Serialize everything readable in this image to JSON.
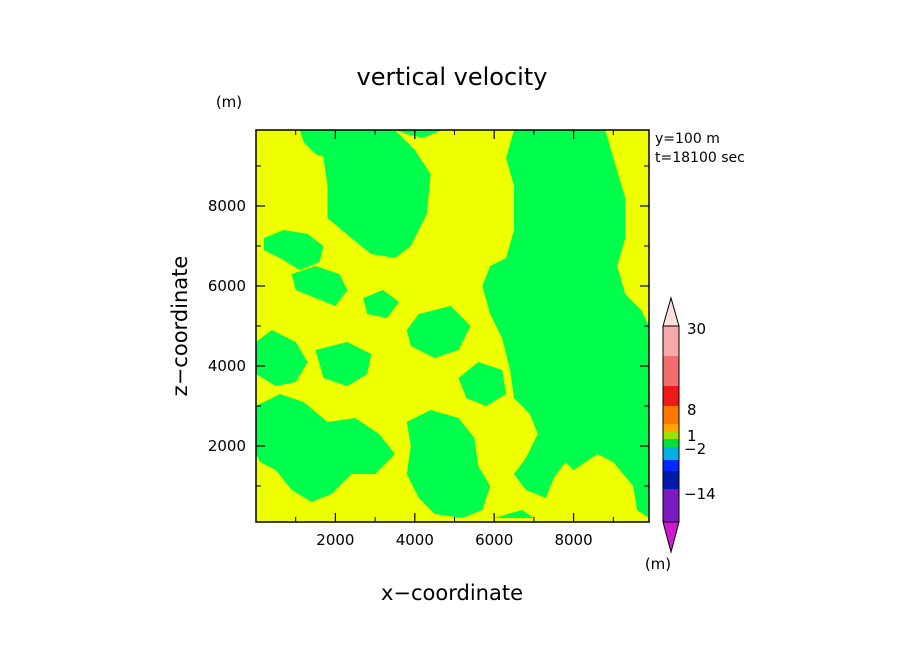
{
  "chart_data": {
    "type": "heatmap",
    "title": "vertical velocity",
    "xlabel": "x−coordinate",
    "ylabel": "z−coordinate",
    "x_unit": "(m)",
    "y_unit": "(m)",
    "annotation_y": "y=100 m",
    "annotation_t": "t=18100 sec",
    "xlim": [
      0,
      9900
    ],
    "ylim": [
      100,
      9900
    ],
    "x_ticks": [
      {
        "value": 2000,
        "label": "2000"
      },
      {
        "value": 4000,
        "label": "4000"
      },
      {
        "value": 6000,
        "label": "6000"
      },
      {
        "value": 8000,
        "label": "8000"
      }
    ],
    "y_ticks": [
      {
        "value": 2000,
        "label": "2000"
      },
      {
        "value": 4000,
        "label": "4000"
      },
      {
        "value": 6000,
        "label": "6000"
      },
      {
        "value": 8000,
        "label": "8000"
      }
    ],
    "background_color": "#eeff00",
    "region_color": "#00ff4c",
    "regions": [
      [
        [
          1100,
          9900
        ],
        [
          2300,
          9900
        ],
        [
          2100,
          9500
        ],
        [
          1800,
          9200
        ],
        [
          1500,
          9300
        ],
        [
          1200,
          9600
        ]
      ],
      [
        [
          1700,
          9900
        ],
        [
          4700,
          9900
        ],
        [
          4200,
          9700
        ],
        [
          3800,
          9800
        ],
        [
          3500,
          9900
        ],
        [
          4000,
          9400
        ],
        [
          4400,
          8800
        ],
        [
          4300,
          7800
        ],
        [
          3900,
          7000
        ],
        [
          3500,
          6700
        ],
        [
          2900,
          6800
        ],
        [
          2400,
          7200
        ],
        [
          1800,
          7700
        ],
        [
          1800,
          8500
        ],
        [
          1700,
          9200
        ]
      ],
      [
        [
          6500,
          9900
        ],
        [
          8800,
          9900
        ],
        [
          9000,
          9200
        ],
        [
          9300,
          8200
        ],
        [
          9300,
          7200
        ],
        [
          9100,
          6500
        ],
        [
          9300,
          5800
        ],
        [
          9700,
          5400
        ],
        [
          9900,
          5000
        ],
        [
          9900,
          200
        ],
        [
          9600,
          400
        ],
        [
          9500,
          1000
        ],
        [
          9000,
          1600
        ],
        [
          8600,
          1800
        ],
        [
          8300,
          1600
        ],
        [
          8000,
          1400
        ],
        [
          7800,
          1600
        ],
        [
          7500,
          1200
        ],
        [
          7300,
          700
        ],
        [
          6800,
          900
        ],
        [
          6500,
          1300
        ],
        [
          6800,
          1700
        ],
        [
          7100,
          2300
        ],
        [
          6900,
          2800
        ],
        [
          6500,
          3200
        ],
        [
          6400,
          3900
        ],
        [
          6200,
          4700
        ],
        [
          5900,
          5300
        ],
        [
          5700,
          6000
        ],
        [
          5900,
          6500
        ],
        [
          6300,
          6700
        ],
        [
          6500,
          7400
        ],
        [
          6500,
          8500
        ],
        [
          6300,
          9200
        ]
      ],
      [
        [
          200,
          7200
        ],
        [
          700,
          7400
        ],
        [
          1300,
          7300
        ],
        [
          1700,
          7000
        ],
        [
          1600,
          6600
        ],
        [
          1100,
          6400
        ],
        [
          600,
          6700
        ],
        [
          200,
          6900
        ]
      ],
      [
        [
          900,
          6300
        ],
        [
          1500,
          6500
        ],
        [
          2100,
          6300
        ],
        [
          2300,
          5900
        ],
        [
          2000,
          5500
        ],
        [
          1500,
          5700
        ],
        [
          1000,
          5900
        ]
      ],
      [
        [
          0,
          4600
        ],
        [
          400,
          4900
        ],
        [
          1000,
          4600
        ],
        [
          1300,
          4100
        ],
        [
          1000,
          3600
        ],
        [
          500,
          3500
        ],
        [
          0,
          3800
        ]
      ],
      [
        [
          1500,
          4400
        ],
        [
          2300,
          4600
        ],
        [
          2900,
          4300
        ],
        [
          2800,
          3800
        ],
        [
          2300,
          3500
        ],
        [
          1700,
          3700
        ]
      ],
      [
        [
          4100,
          5300
        ],
        [
          4900,
          5500
        ],
        [
          5400,
          5000
        ],
        [
          5100,
          4400
        ],
        [
          4500,
          4200
        ],
        [
          3900,
          4500
        ],
        [
          3800,
          4900
        ]
      ],
      [
        [
          0,
          3000
        ],
        [
          600,
          3300
        ],
        [
          1200,
          3100
        ],
        [
          1800,
          2600
        ],
        [
          2500,
          2700
        ],
        [
          3100,
          2300
        ],
        [
          3500,
          1800
        ],
        [
          3000,
          1300
        ],
        [
          2400,
          1300
        ],
        [
          1900,
          800
        ],
        [
          1400,
          600
        ],
        [
          900,
          900
        ],
        [
          500,
          1400
        ],
        [
          100,
          1600
        ],
        [
          0,
          1800
        ]
      ],
      [
        [
          3800,
          2600
        ],
        [
          4400,
          2900
        ],
        [
          5100,
          2700
        ],
        [
          5500,
          2200
        ],
        [
          5600,
          1500
        ],
        [
          5900,
          1000
        ],
        [
          5700,
          400
        ],
        [
          5200,
          200
        ],
        [
          4500,
          300
        ],
        [
          4100,
          700
        ],
        [
          3800,
          1300
        ],
        [
          3900,
          2000
        ]
      ],
      [
        [
          5100,
          3700
        ],
        [
          5600,
          4100
        ],
        [
          6200,
          3900
        ],
        [
          6300,
          3300
        ],
        [
          5800,
          3000
        ],
        [
          5300,
          3200
        ]
      ],
      [
        [
          6800,
          6900
        ],
        [
          7300,
          7000
        ],
        [
          7600,
          6500
        ],
        [
          7300,
          6100
        ],
        [
          6800,
          6300
        ]
      ],
      [
        [
          8200,
          2900
        ],
        [
          8600,
          3000
        ],
        [
          8900,
          2600
        ],
        [
          8600,
          2300
        ],
        [
          8200,
          2400
        ]
      ],
      [
        [
          6000,
          200
        ],
        [
          6700,
          400
        ],
        [
          7000,
          200
        ]
      ],
      [
        [
          2700,
          5700
        ],
        [
          3200,
          5900
        ],
        [
          3600,
          5600
        ],
        [
          3300,
          5200
        ],
        [
          2800,
          5300
        ]
      ]
    ],
    "colorbar": {
      "unit": "(m)",
      "label_values": [
        "30",
        "8",
        "1",
        "−2",
        "−14"
      ],
      "bands": [
        {
          "color": "#f4aaa8"
        },
        {
          "color": "#f26b6e"
        },
        {
          "color": "#ee1a1a"
        },
        {
          "color": "#ff7700"
        },
        {
          "color": "#ffa500"
        },
        {
          "color": "#a0e000"
        },
        {
          "color": "#00e040"
        },
        {
          "color": "#00b0e0"
        },
        {
          "color": "#0028ff"
        },
        {
          "color": "#001aa8"
        },
        {
          "color": "#7a1ac0"
        },
        {
          "color": "#c01ad0"
        }
      ],
      "top_arrow_color": "#fbe0dc",
      "bottom_arrow_color": "#d01ad0"
    }
  }
}
